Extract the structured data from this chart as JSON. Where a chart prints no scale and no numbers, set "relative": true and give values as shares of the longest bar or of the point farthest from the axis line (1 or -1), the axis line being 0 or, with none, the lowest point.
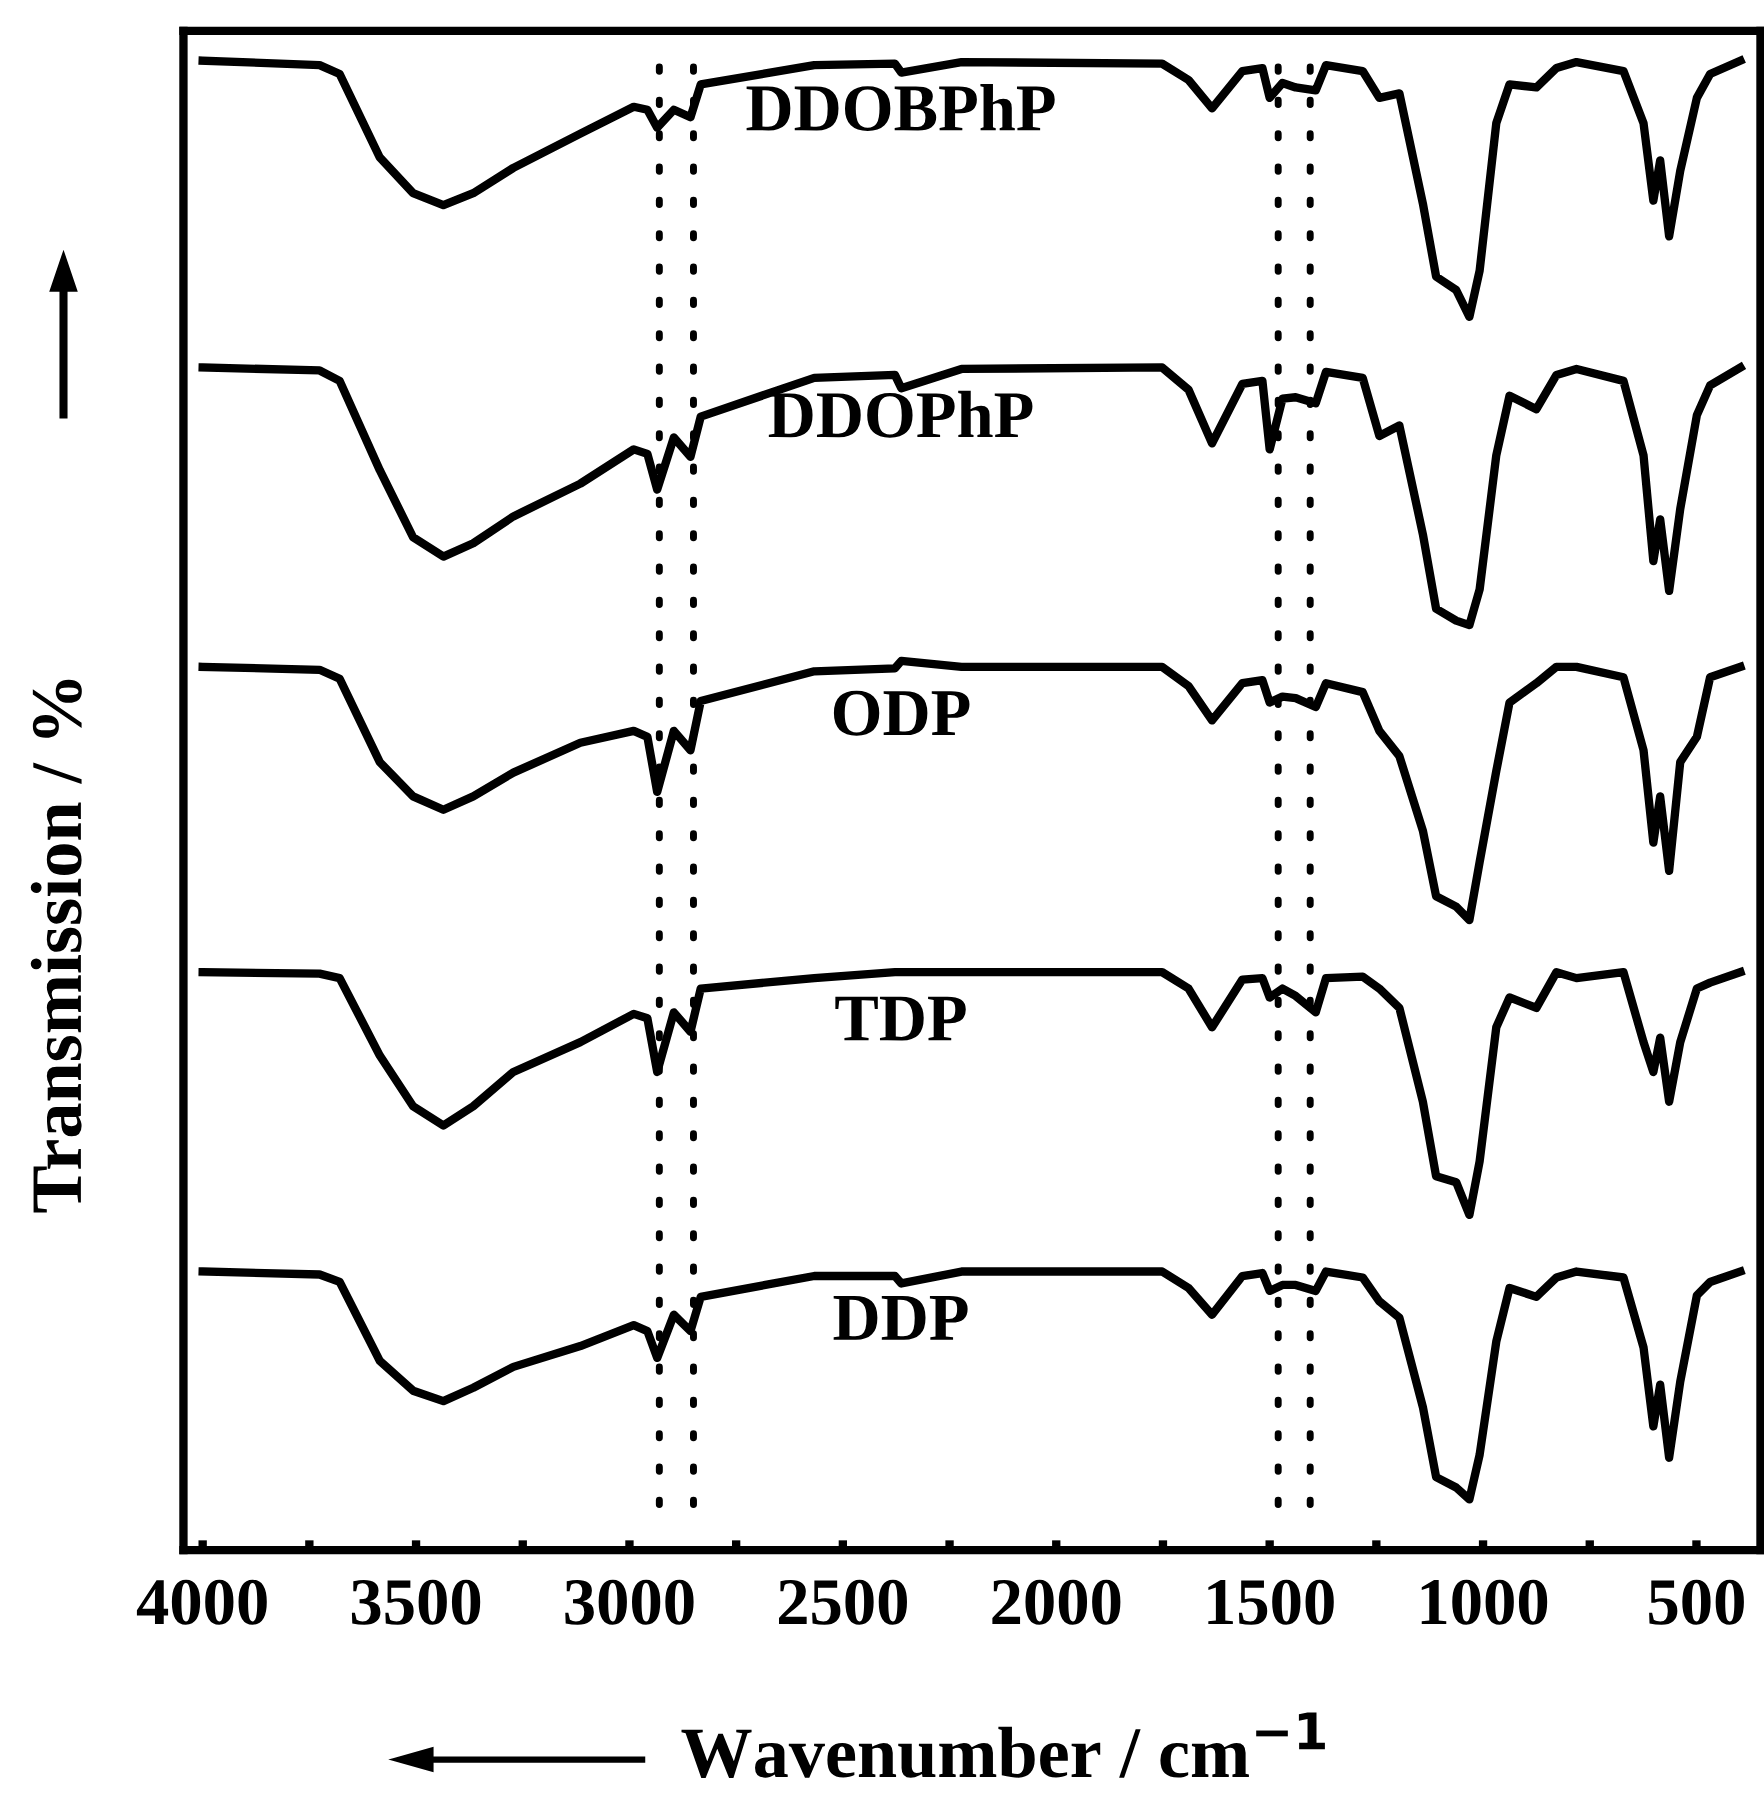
{
  "chart_data": {
    "type": "line",
    "xlabel": "Wavenumber / cm$^{−1}$",
    "ylabel": "Transmission / %",
    "relative": true,
    "tick_labels": "x",
    "legend": false,
    "grid": false,
    "line_style": "solid",
    "xlim": [
      4045,
      350
    ],
    "xticks": [
      4000,
      {
        "value": 3750,
        "label": null
      },
      3500,
      {
        "value": 3250,
        "label": null
      },
      3000,
      {
        "value": 2750,
        "label": null
      },
      2500,
      {
        "value": 2250,
        "label": null
      },
      2000,
      {
        "value": 1750,
        "label": null
      },
      1500,
      {
        "value": 1250,
        "label": null
      },
      1000,
      {
        "value": 750,
        "label": null
      },
      500
    ],
    "x": [
      4000,
      3726,
      3679,
      3585,
      3507,
      3436,
      3366,
      3272,
      3115,
      2990,
      2958,
      2935,
      2896,
      2857,
      2833,
      2567,
      2378,
      2363,
      2222,
      1752,
      1690,
      1635,
      1564,
      1517,
      1500,
      1470,
      1439,
      1392,
      1368,
      1282,
      1243,
      1196,
      1141,
      1110,
      1063,
      1032,
      1008,
      969,
      938,
      875,
      828,
      781,
      671,
      624,
      601,
      585,
      564,
      538,
      499,
      468,
      397
    ],
    "series": [
      {
        "name": "DDOBPhP",
        "color": "#000000",
        "values": [
          1.0,
          0.997,
          0.991,
          0.935,
          0.911,
          0.903,
          0.911,
          0.928,
          0.951,
          0.969,
          0.967,
          0.955,
          0.967,
          0.962,
          0.984,
          0.997,
          0.998,
          0.992,
          0.999,
          0.998,
          0.987,
          0.968,
          0.993,
          0.995,
          0.975,
          0.985,
          0.982,
          0.98,
          0.997,
          0.993,
          0.975,
          0.978,
          0.904,
          0.855,
          0.846,
          0.828,
          0.859,
          0.958,
          0.984,
          0.982,
          0.995,
          0.999,
          0.993,
          0.958,
          0.906,
          0.933,
          0.882,
          0.926,
          0.975,
          0.991,
          1.0
        ]
      },
      {
        "name": "DDOPhP",
        "color": "#000000",
        "values": [
          0.794,
          0.792,
          0.785,
          0.725,
          0.68,
          0.667,
          0.676,
          0.694,
          0.716,
          0.739,
          0.736,
          0.712,
          0.747,
          0.734,
          0.761,
          0.787,
          0.789,
          0.78,
          0.793,
          0.794,
          0.779,
          0.743,
          0.783,
          0.785,
          0.739,
          0.773,
          0.774,
          0.77,
          0.791,
          0.787,
          0.748,
          0.755,
          0.682,
          0.632,
          0.624,
          0.621,
          0.645,
          0.735,
          0.775,
          0.766,
          0.789,
          0.793,
          0.785,
          0.735,
          0.664,
          0.692,
          0.644,
          0.699,
          0.762,
          0.782,
          0.794
        ]
      },
      {
        "name": "ODP",
        "color": "#000000",
        "values": [
          0.593,
          0.591,
          0.585,
          0.529,
          0.506,
          0.497,
          0.506,
          0.522,
          0.542,
          0.55,
          0.546,
          0.509,
          0.55,
          0.537,
          0.57,
          0.59,
          0.592,
          0.597,
          0.593,
          0.593,
          0.58,
          0.557,
          0.582,
          0.584,
          0.569,
          0.573,
          0.572,
          0.566,
          0.582,
          0.576,
          0.55,
          0.533,
          0.483,
          0.439,
          0.432,
          0.423,
          0.462,
          0.523,
          0.569,
          0.582,
          0.593,
          0.593,
          0.586,
          0.537,
          0.475,
          0.506,
          0.456,
          0.529,
          0.546,
          0.586,
          0.593
        ]
      },
      {
        "name": "TDP",
        "color": "#000000",
        "values": [
          0.388,
          0.387,
          0.384,
          0.332,
          0.298,
          0.285,
          0.298,
          0.321,
          0.341,
          0.36,
          0.357,
          0.321,
          0.361,
          0.348,
          0.377,
          0.384,
          0.388,
          0.388,
          0.388,
          0.388,
          0.377,
          0.351,
          0.383,
          0.384,
          0.371,
          0.377,
          0.372,
          0.361,
          0.384,
          0.385,
          0.377,
          0.364,
          0.301,
          0.251,
          0.247,
          0.225,
          0.261,
          0.351,
          0.371,
          0.364,
          0.388,
          0.384,
          0.388,
          0.341,
          0.321,
          0.344,
          0.301,
          0.341,
          0.377,
          0.381,
          0.388
        ]
      },
      {
        "name": "DDP",
        "color": "#000000",
        "values": [
          0.187,
          0.185,
          0.18,
          0.127,
          0.107,
          0.1,
          0.109,
          0.123,
          0.137,
          0.151,
          0.147,
          0.129,
          0.158,
          0.147,
          0.17,
          0.184,
          0.184,
          0.179,
          0.187,
          0.187,
          0.176,
          0.158,
          0.184,
          0.186,
          0.174,
          0.178,
          0.178,
          0.174,
          0.187,
          0.183,
          0.167,
          0.156,
          0.096,
          0.049,
          0.042,
          0.034,
          0.064,
          0.14,
          0.176,
          0.17,
          0.183,
          0.187,
          0.183,
          0.136,
          0.083,
          0.111,
          0.062,
          0.113,
          0.171,
          0.18,
          0.187
        ]
      }
    ],
    "ref_lines": [
      {
        "axis": "x",
        "value": 2930,
        "color": "#000000",
        "line_style": "dotted"
      },
      {
        "axis": "x",
        "value": 2850,
        "color": "#000000",
        "line_style": "dotted"
      },
      {
        "axis": "x",
        "value": 1480,
        "color": "#000000",
        "line_style": "dotted"
      },
      {
        "axis": "x",
        "value": 1405,
        "color": "#000000",
        "line_style": "dotted"
      }
    ]
  }
}
